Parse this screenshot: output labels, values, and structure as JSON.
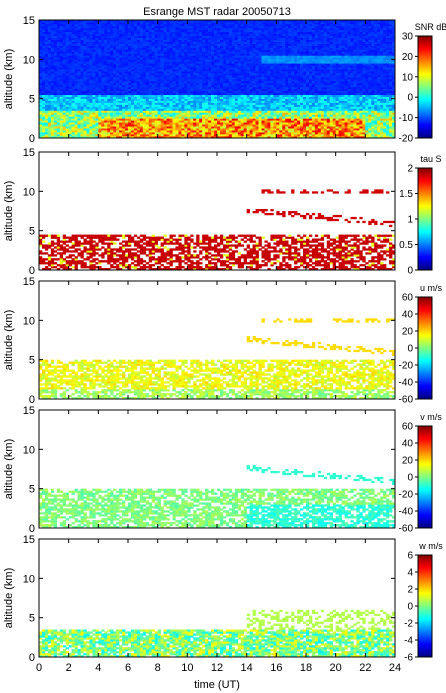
{
  "title": "Esrange MST radar 20050713",
  "xlabel": "time (UT)",
  "chart_data": {
    "type": "heatmap",
    "title": "Esrange MST radar 20050713",
    "xlabel": "time (UT)",
    "x_ticks": [
      0,
      2,
      4,
      6,
      8,
      10,
      12,
      14,
      16,
      18,
      20,
      22,
      24
    ],
    "xlim": [
      0,
      24
    ],
    "panels": [
      {
        "id": "snr",
        "ylabel": "altitude (km)",
        "ylim": [
          0,
          15
        ],
        "y_ticks": [
          0,
          5,
          10,
          15
        ],
        "colorbar": {
          "label": "SNR dB",
          "range": [
            -20,
            30
          ],
          "ticks": [
            -20,
            -10,
            0,
            10,
            20,
            30
          ]
        }
      },
      {
        "id": "tau",
        "ylabel": "altitude (km)",
        "ylim": [
          0,
          15
        ],
        "y_ticks": [
          0,
          5,
          10,
          15
        ],
        "colorbar": {
          "label": "tau S",
          "range": [
            0,
            2
          ],
          "ticks": [
            0,
            0.5,
            1,
            1.5,
            2
          ]
        }
      },
      {
        "id": "u",
        "ylabel": "altitude (km)",
        "ylim": [
          0,
          15
        ],
        "y_ticks": [
          0,
          5,
          10,
          15
        ],
        "colorbar": {
          "label": "u m/s",
          "range": [
            -60,
            60
          ],
          "ticks": [
            -60,
            -40,
            -20,
            0,
            20,
            40,
            60
          ]
        }
      },
      {
        "id": "v",
        "ylabel": "altitude (km)",
        "ylim": [
          0,
          15
        ],
        "y_ticks": [
          0,
          5,
          10,
          15
        ],
        "colorbar": {
          "label": "v m/s",
          "range": [
            -60,
            60
          ],
          "ticks": [
            -60,
            -40,
            -20,
            0,
            20,
            40,
            60
          ]
        }
      },
      {
        "id": "w",
        "ylabel": "altitude (km)",
        "ylim": [
          0,
          15
        ],
        "y_ticks": [
          0,
          5,
          10,
          15
        ],
        "colorbar": {
          "label": "w m/s",
          "range": [
            -6,
            6
          ],
          "ticks": [
            -6,
            -4,
            -2,
            0,
            2,
            4,
            6
          ]
        }
      }
    ]
  }
}
